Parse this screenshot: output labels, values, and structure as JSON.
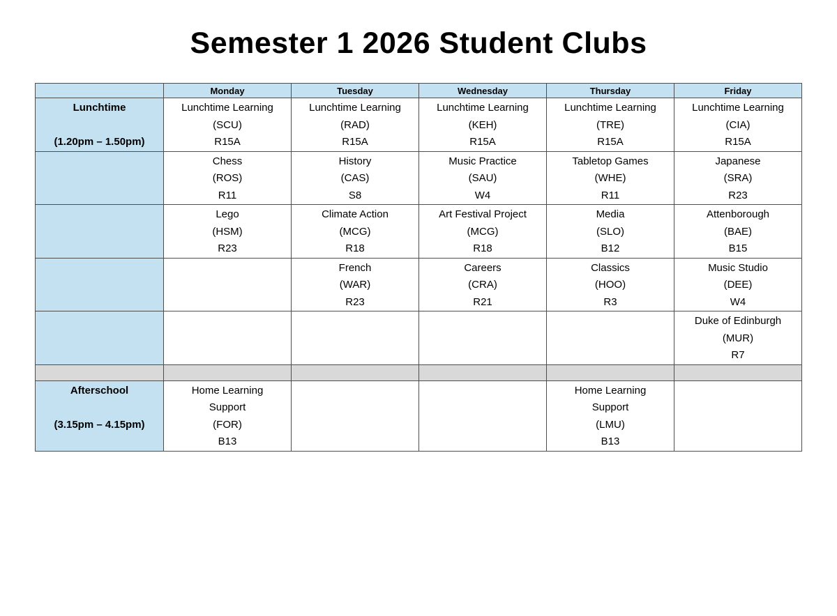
{
  "title": "Semester 1 2026 Student Clubs",
  "colors": {
    "header_blue": "#c3e1f1",
    "separator_gray": "#d9d9d9",
    "border": "#4d4d4d"
  },
  "table": {
    "day_headers": [
      "Monday",
      "Tuesday",
      "Wednesday",
      "Thursday",
      "Friday"
    ],
    "lunchtime": {
      "label": "Lunchtime",
      "time": "(1.20pm – 1.50pm)",
      "rows": [
        [
          {
            "club": "Lunchtime Learning",
            "staff": "(SCU)",
            "room": "R15A"
          },
          {
            "club": "Lunchtime Learning",
            "staff": "(RAD)",
            "room": "R15A"
          },
          {
            "club": "Lunchtime Learning",
            "staff": "(KEH)",
            "room": "R15A"
          },
          {
            "club": "Lunchtime Learning",
            "staff": "(TRE)",
            "room": "R15A"
          },
          {
            "club": "Lunchtime Learning",
            "staff": "(CIA)",
            "room": "R15A"
          }
        ],
        [
          {
            "club": "Chess",
            "staff": "(ROS)",
            "room": "R11"
          },
          {
            "club": "History",
            "staff": "(CAS)",
            "room": "S8"
          },
          {
            "club": "Music Practice",
            "staff": "(SAU)",
            "room": "W4"
          },
          {
            "club": "Tabletop Games",
            "staff": "(WHE)",
            "room": "R11"
          },
          {
            "club": "Japanese",
            "staff": "(SRA)",
            "room": "R23"
          }
        ],
        [
          {
            "club": "Lego",
            "staff": "(HSM)",
            "room": "R23"
          },
          {
            "club": "Climate Action",
            "staff": "(MCG)",
            "room": "R18"
          },
          {
            "club": "Art Festival Project",
            "staff": "(MCG)",
            "room": "R18"
          },
          {
            "club": "Media",
            "staff": "(SLO)",
            "room": "B12"
          },
          {
            "club": "Attenborough",
            "staff": "(BAE)",
            "room": "B15"
          }
        ],
        [
          null,
          {
            "club": "French",
            "staff": "(WAR)",
            "room": "R23"
          },
          {
            "club": "Careers",
            "staff": "(CRA)",
            "room": "R21"
          },
          {
            "club": "Classics",
            "staff": "(HOO)",
            "room": "R3"
          },
          {
            "club": "Music Studio",
            "staff": "(DEE)",
            "room": "W4"
          }
        ],
        [
          null,
          null,
          null,
          null,
          {
            "club": "Duke of Edinburgh",
            "staff": "(MUR)",
            "room": "R7"
          }
        ]
      ]
    },
    "afterschool": {
      "label": "Afterschool",
      "time": "(3.15pm – 4.15pm)",
      "rows": [
        [
          {
            "club": "Home Learning\nSupport",
            "staff": "(FOR)",
            "room": "B13"
          },
          null,
          null,
          {
            "club": "Home Learning\nSupport",
            "staff": "(LMU)",
            "room": "B13"
          },
          null
        ]
      ]
    }
  }
}
